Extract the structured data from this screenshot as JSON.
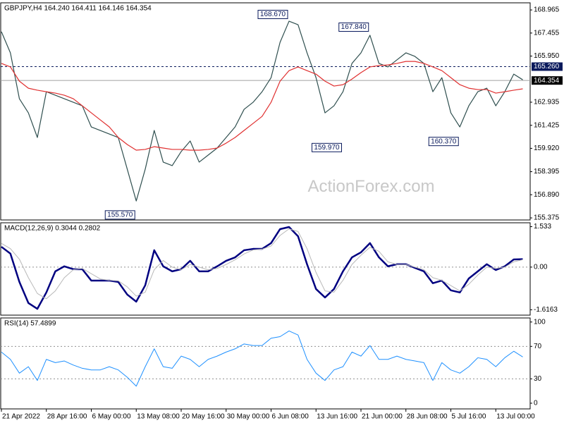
{
  "chart_data": [
    {
      "type": "line",
      "title": "GBPJPY,H4  164.240 164.411 164.146 164.354",
      "watermark": "ActionForex.com",
      "series": [
        {
          "color": "#2f4f4f",
          "line_width": 1.2,
          "values": [
            167.54,
            166.16,
            163.16,
            162.24,
            160.63,
            163.62,
            163.39,
            163.16,
            162.93,
            162.7,
            161.32,
            161.09,
            160.86,
            160.63,
            158.56,
            156.48,
            158.56,
            161.09,
            159.02,
            158.79,
            159.71,
            160.4,
            159.02,
            159.48,
            159.94,
            160.63,
            161.32,
            162.47,
            162.93,
            163.62,
            164.54,
            166.85,
            168.23,
            168.0,
            166.16,
            164.54,
            162.24,
            162.7,
            163.62,
            165.47,
            166.16,
            167.31,
            165.47,
            165.24,
            165.7,
            166.16,
            165.93,
            165.47,
            163.62,
            164.54,
            162.24,
            161.32,
            162.7,
            163.62,
            163.85,
            162.7,
            163.62,
            164.77,
            164.4
          ]
        },
        {
          "color": "#e03030",
          "line_width": 1.2,
          "values": [
            165.47,
            165.24,
            164.31,
            163.85,
            163.72,
            163.62,
            163.53,
            163.39,
            163.16,
            162.7,
            162.24,
            161.78,
            161.32,
            160.63,
            160.17,
            159.8,
            159.85,
            160.03,
            159.94,
            159.85,
            159.85,
            159.8,
            159.8,
            159.85,
            159.94,
            160.26,
            160.63,
            161.09,
            161.55,
            162.01,
            162.93,
            164.31,
            165.0,
            165.24,
            165.0,
            164.77,
            164.31,
            163.99,
            164.08,
            164.45,
            164.87,
            165.24,
            165.33,
            165.37,
            165.47,
            165.6,
            165.6,
            165.47,
            165.24,
            165.0,
            164.54,
            164.08,
            163.85,
            163.76,
            163.76,
            163.53,
            163.62,
            163.72,
            163.81
          ]
        }
      ],
      "ylim": [
        155.24,
        169.43
      ],
      "yticks": [
        168.965,
        167.455,
        {
          "value": 165.95,
          "label": "165.950"
        },
        162.935,
        161.425,
        {
          "value": 159.92,
          "label": "159.920"
        },
        158.395,
        {
          "value": 156.89,
          "label": "156.890"
        },
        155.375
      ],
      "levels": [
        {
          "value": 165.26,
          "label": "165.260",
          "style": "dashed",
          "color": "#0a1a5c"
        },
        {
          "value": 164.354,
          "label": "164.354",
          "style": "solid",
          "color": "#000000"
        }
      ],
      "annotations": [
        {
          "index": 32,
          "value": 168.67,
          "label": "168.670"
        },
        {
          "index": 41,
          "value": 167.84,
          "label": "167.840"
        },
        {
          "index": 38,
          "value": 159.97,
          "label": "159.970"
        },
        {
          "index": 51,
          "value": 160.37,
          "label": "160.370"
        },
        {
          "index": 15,
          "value": 155.57,
          "label": "155.570"
        }
      ]
    },
    {
      "type": "line",
      "title": "MACD(12,26,9) 0.3044 0.2802",
      "series": [
        {
          "color": "#000080",
          "line_width": 2.5,
          "values": [
            0.77,
            0.51,
            -0.56,
            -1.36,
            -1.58,
            -0.96,
            -0.16,
            0.03,
            -0.08,
            -0.08,
            -0.51,
            -0.51,
            -0.51,
            -0.56,
            -1.04,
            -1.31,
            -0.69,
            0.64,
            0.03,
            -0.16,
            -0.08,
            0.24,
            -0.16,
            -0.16,
            0.03,
            0.24,
            0.37,
            0.64,
            0.69,
            0.69,
            0.91,
            1.44,
            1.52,
            1.17,
            0.11,
            -0.83,
            -1.15,
            -0.83,
            -0.16,
            0.37,
            0.56,
            0.91,
            0.37,
            0.03,
            0.11,
            0.11,
            -0.03,
            -0.16,
            -0.61,
            -0.51,
            -0.88,
            -0.96,
            -0.43,
            -0.16,
            0.11,
            -0.11,
            0.03,
            0.29,
            0.3
          ]
        },
        {
          "color": "#b8b8b8",
          "line_width": 1,
          "values": [
            0.9,
            0.7,
            0.3,
            -0.4,
            -1.0,
            -1.2,
            -0.9,
            -0.4,
            -0.1,
            -0.05,
            -0.25,
            -0.45,
            -0.5,
            -0.52,
            -0.75,
            -1.1,
            -0.95,
            -0.1,
            0.25,
            0.0,
            -0.1,
            0.1,
            0.0,
            -0.1,
            -0.05,
            0.1,
            0.28,
            0.5,
            0.65,
            0.68,
            0.8,
            1.2,
            1.45,
            1.35,
            0.7,
            -0.2,
            -0.9,
            -0.95,
            -0.5,
            0.1,
            0.45,
            0.75,
            0.6,
            0.2,
            0.1,
            0.1,
            0.0,
            -0.1,
            -0.4,
            -0.5,
            -0.7,
            -0.9,
            -0.65,
            -0.3,
            0.0,
            -0.05,
            0.0,
            0.2,
            0.28
          ]
        }
      ],
      "ylim": [
        -1.82,
        1.68
      ],
      "yticks": [
        1.533,
        {
          "value": 0,
          "label": "0.00"
        },
        -1.6163
      ],
      "levels": [
        0
      ]
    },
    {
      "type": "line",
      "title": "RSI(14) 57.4899",
      "categories": [
        "21 Apr 2022",
        null,
        null,
        null,
        null,
        "28 Apr 16:00",
        null,
        null,
        null,
        null,
        "6 May 00:00",
        null,
        null,
        null,
        null,
        "13 May 08:00",
        null,
        null,
        null,
        null,
        "20 May 16:00",
        null,
        null,
        null,
        null,
        "30 May 00:00",
        null,
        null,
        null,
        null,
        "6 Jun 08:00",
        null,
        null,
        null,
        null,
        "13 Jun 16:00",
        null,
        null,
        null,
        null,
        "21 Jun 00:00",
        null,
        null,
        null,
        null,
        "28 Jun 08:00",
        null,
        null,
        null,
        null,
        "5 Jul 16:00",
        null,
        null,
        null,
        null,
        "13 Jul 00:00",
        null,
        null,
        null
      ],
      "series": [
        {
          "color": "#1e90ff",
          "line_width": 1,
          "values": [
            63,
            54,
            37,
            45,
            28,
            54,
            50,
            52,
            47,
            43,
            41,
            41,
            45,
            41,
            32,
            21,
            45,
            67,
            45,
            43,
            58,
            54,
            45,
            54,
            58,
            63,
            67,
            73,
            71,
            71,
            80,
            82,
            89,
            84,
            54,
            37,
            28,
            41,
            45,
            63,
            58,
            71,
            54,
            54,
            58,
            54,
            52,
            50,
            28,
            50,
            41,
            37,
            45,
            56,
            54,
            45,
            56,
            64,
            57
          ]
        }
      ],
      "ylim": [
        -7,
        105
      ],
      "yticks": [
        0,
        30,
        70,
        100
      ],
      "levels": [
        30,
        70
      ]
    }
  ]
}
